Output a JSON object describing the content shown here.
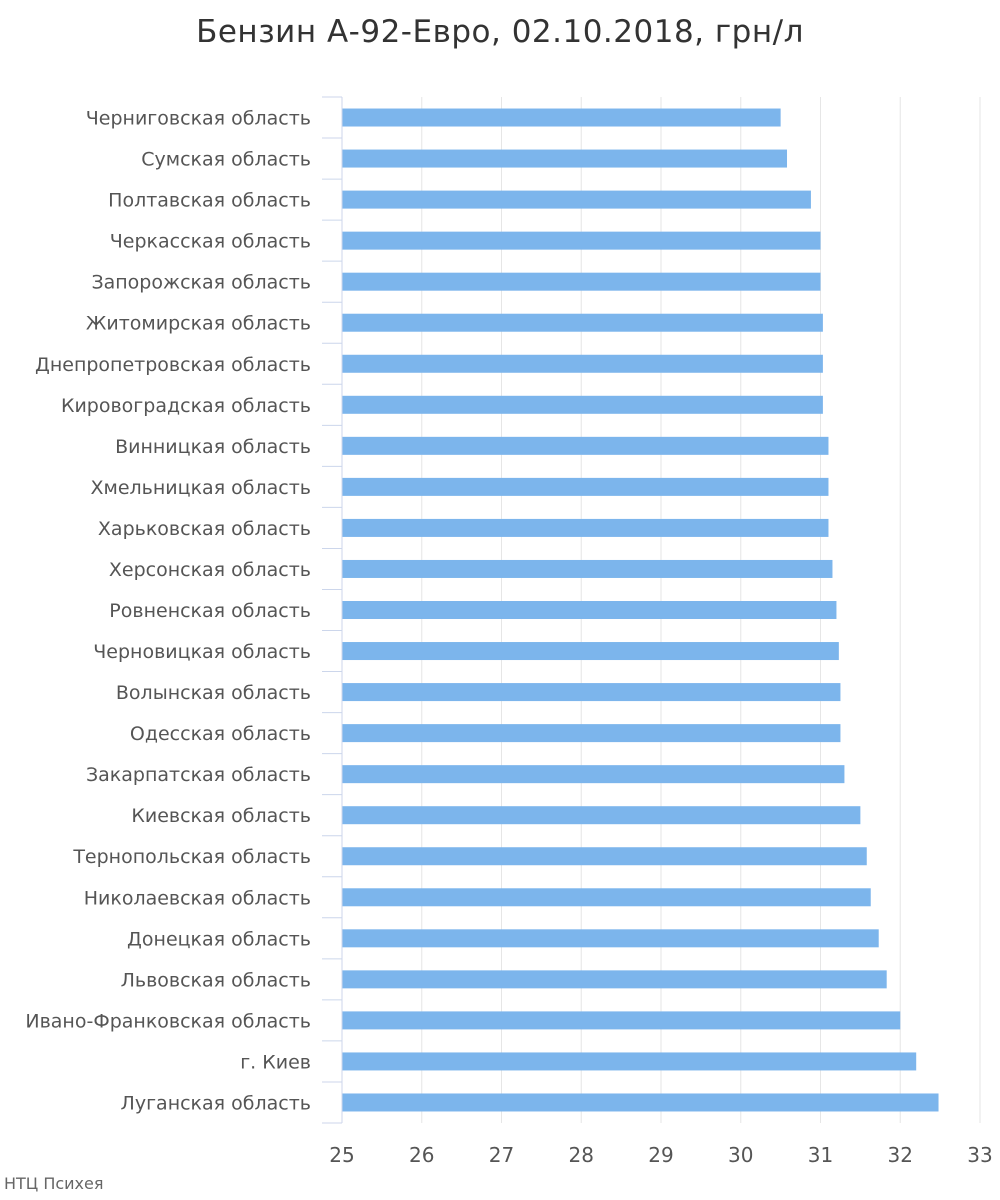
{
  "chart_data": {
    "type": "bar",
    "orientation": "horizontal",
    "title": "Бензин А-92-Евро, 02.10.2018, грн/л",
    "xlabel": "",
    "ylabel": "",
    "xlim": [
      25,
      33
    ],
    "xticks": [
      "25",
      "26",
      "27",
      "28",
      "29",
      "30",
      "31",
      "32",
      "33"
    ],
    "grid": true,
    "legend": "none",
    "bar_color": "#7cb5ec",
    "categories": [
      "Черниговская область",
      "Сумская область",
      "Полтавская область",
      "Черкасская область",
      "Запорожская область",
      "Житомирская область",
      "Днепропетровская область",
      "Кировоградская область",
      "Винницкая область",
      "Хмельницкая область",
      "Харьковская область",
      "Херсонская область",
      "Ровненская область",
      "Черновицкая область",
      "Волынская область",
      "Одесская область",
      "Закарпатская область",
      "Киевская область",
      "Тернопольская область",
      "Николаевская область",
      "Донецкая область",
      "Львовская область",
      "Ивано-Франковская область",
      "г. Киев",
      "Луганская область"
    ],
    "values": [
      30.5,
      30.58,
      30.88,
      31.0,
      31.0,
      31.03,
      31.03,
      31.03,
      31.1,
      31.1,
      31.1,
      31.15,
      31.2,
      31.23,
      31.25,
      31.25,
      31.3,
      31.5,
      31.58,
      31.63,
      31.73,
      31.83,
      32.0,
      32.2,
      32.48
    ]
  },
  "credit": "НТЦ Психея"
}
